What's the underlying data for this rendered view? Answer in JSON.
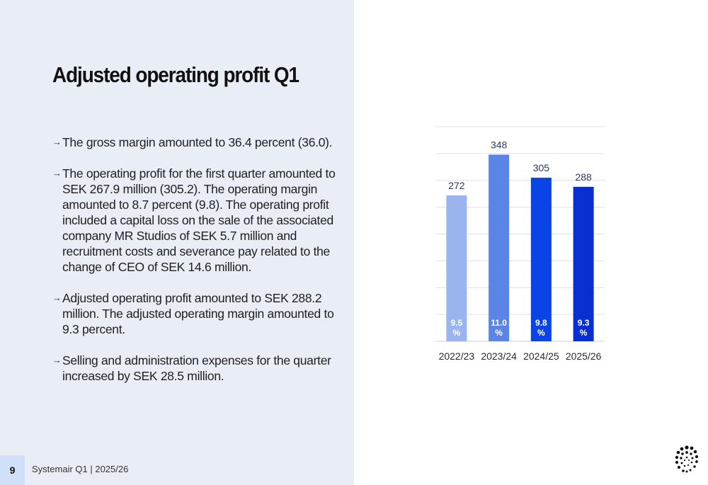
{
  "slide": {
    "title": "Adjusted operating profit Q1",
    "bullets": [
      "The gross margin amounted to 36.4 percent (36.0).",
      "The operating profit for the first quarter amounted to SEK 267.9 million (305.2). The operating margin amounted to 8.7 percent (9.8). The operating profit included a capital loss on the sale of the associated company MR Studios of SEK 5.7 million and recruitment costs and severance pay related to the change of CEO of SEK 14.6 million.",
      "Adjusted operating profit amounted to SEK 288.2 million. The adjusted operating margin amounted to 9.3 percent.",
      "Selling and administration expenses for the quarter increased by SEK 28.5 million."
    ],
    "page_number": "9",
    "footer": "Systemair Q1 | 2025/26"
  },
  "chart_data": {
    "type": "bar",
    "categories": [
      "2022/23",
      "2023/24",
      "2024/25",
      "2025/26"
    ],
    "values": [
      272,
      348,
      305,
      288
    ],
    "inner_labels": [
      "9.5\n%",
      "11.0\n%",
      "9.8\n%",
      "9.3\n%"
    ],
    "colors": [
      "#9ab4ef",
      "#5b84e6",
      "#0a44e6",
      "#0a2fd0"
    ],
    "ylim": [
      0,
      400
    ],
    "grid": true,
    "title": "",
    "xlabel": "",
    "ylabel": ""
  },
  "colors": {
    "panel": "#e9edf5",
    "accent": "#0a44e6"
  }
}
